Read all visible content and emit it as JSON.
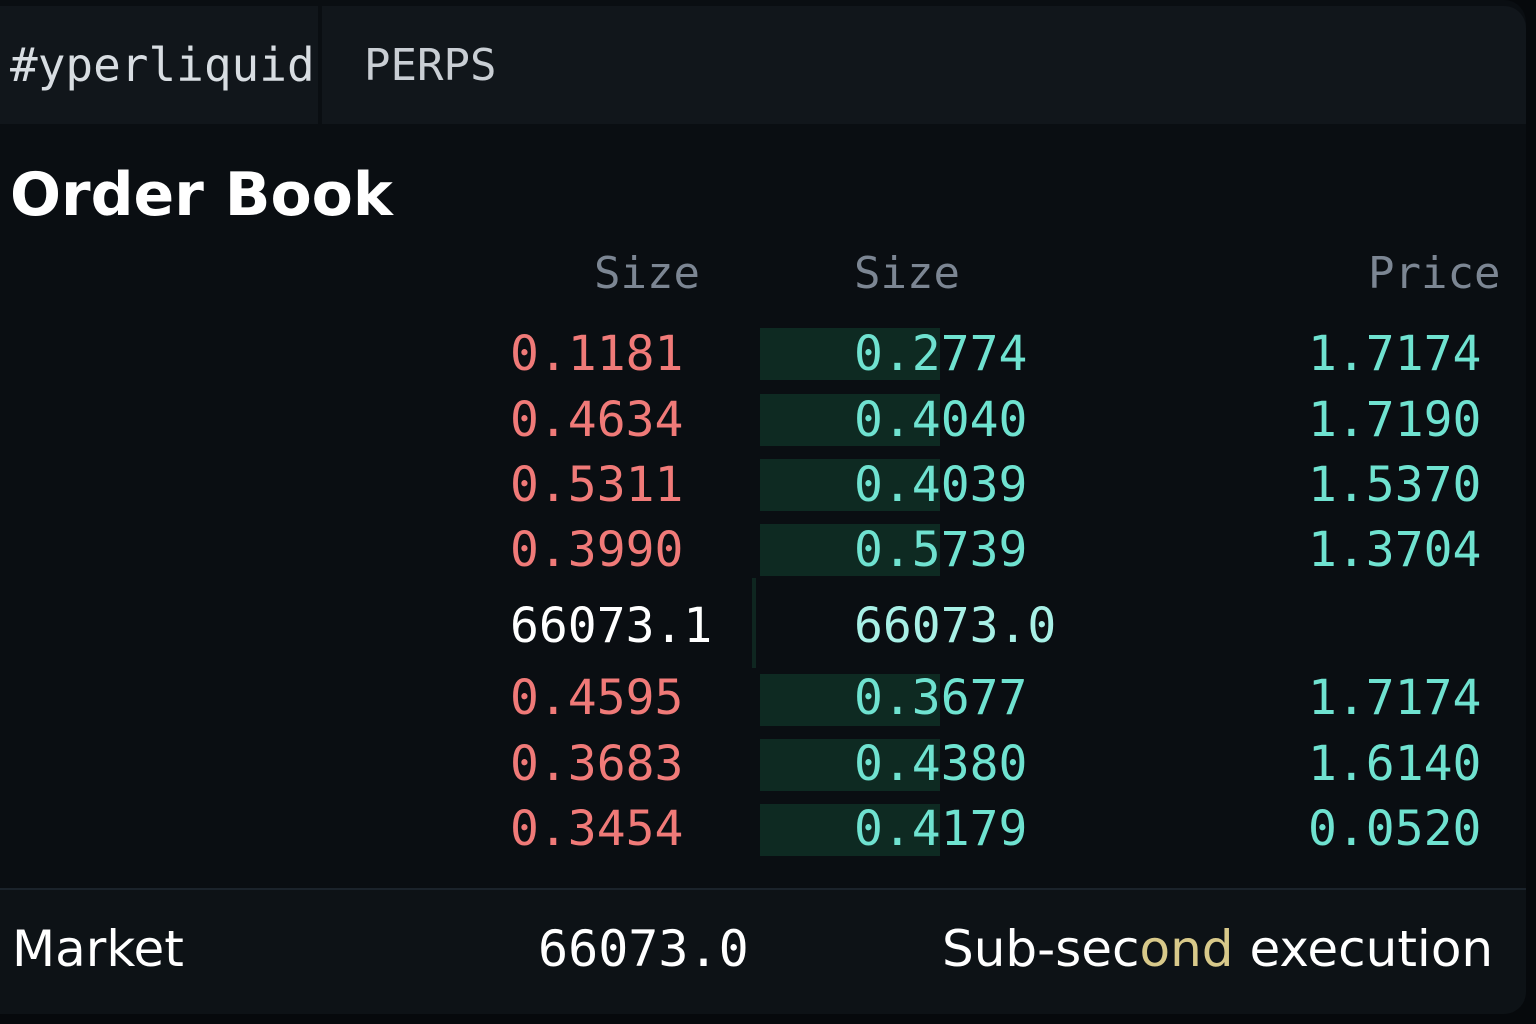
{
  "header": {
    "brand": "#yperliquid",
    "tab": "PERPS"
  },
  "orderbook": {
    "title": "Order Book",
    "columns": [
      "Size",
      "Size",
      "Price"
    ],
    "asks": [
      {
        "ask_size": "0.1181",
        "bid_size": "0.2774",
        "price": "1.7174"
      },
      {
        "ask_size": "0.4634",
        "bid_size": "0.4040",
        "price": "1.7190"
      },
      {
        "ask_size": "0.5311",
        "bid_size": "0.4039",
        "price": "1.5370"
      },
      {
        "ask_size": "0.3990",
        "bid_size": "0.5739",
        "price": "1.3704"
      }
    ],
    "mid": {
      "ask": "66073.1",
      "bid": "66073.0"
    },
    "bids": [
      {
        "ask_size": "0.4595",
        "bid_size": "0.3677",
        "price": "1.7174"
      },
      {
        "ask_size": "0.3683",
        "bid_size": "0.4380",
        "price": "1.6140"
      },
      {
        "ask_size": "0.3454",
        "bid_size": "0.4179",
        "price": "0.0520"
      }
    ]
  },
  "footer": {
    "label": "Market",
    "price": "66073.0",
    "note_a": "Sub-sec",
    "note_b": "ond",
    "note_c": " execution"
  },
  "colors": {
    "ask": "#f07a78",
    "bid": "#6fe2d0",
    "background": "#0a0e12",
    "header": "#11161b"
  }
}
